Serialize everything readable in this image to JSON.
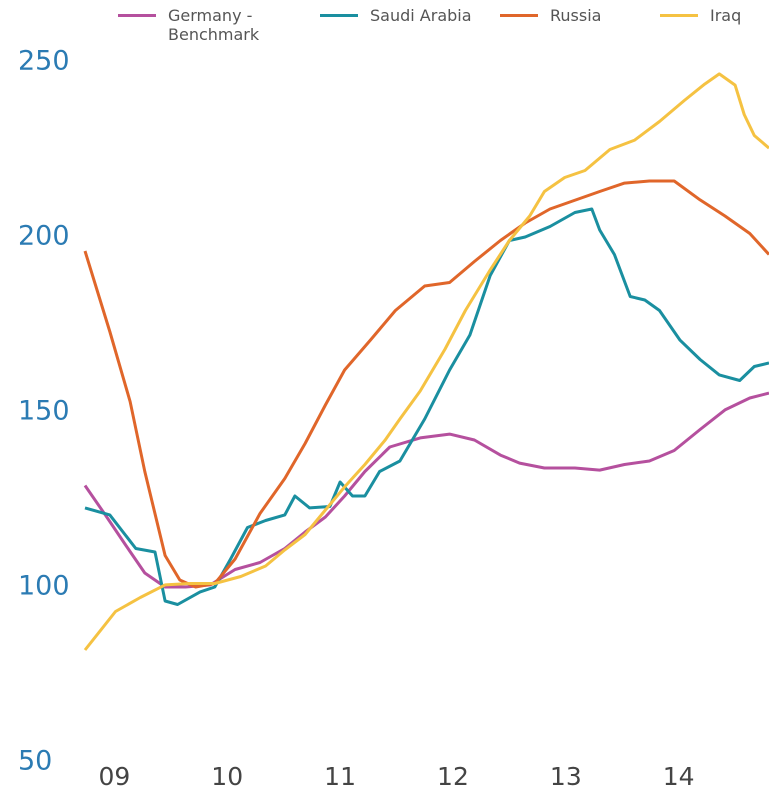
{
  "chart_data": {
    "type": "line",
    "xlim": [
      2008.74,
      2014.8
    ],
    "xticks": [
      {
        "value": 2009,
        "label": "09"
      },
      {
        "value": 2010,
        "label": "10"
      },
      {
        "value": 2011,
        "label": "11"
      },
      {
        "value": 2012,
        "label": "12"
      },
      {
        "value": 2013,
        "label": "13"
      },
      {
        "value": 2014,
        "label": "14"
      }
    ],
    "ylim": [
      50,
      250
    ],
    "yticks": [
      50,
      100,
      150,
      200,
      250
    ],
    "series": [
      {
        "name": "Germany - Benchmark",
        "color": "#b5509e",
        "x": [
          2008.74,
          2008.92,
          2009.1,
          2009.27,
          2009.45,
          2009.63,
          2009.85,
          2010.07,
          2010.29,
          2010.51,
          2010.69,
          2010.87,
          2011.04,
          2011.22,
          2011.44,
          2011.71,
          2011.97,
          2012.19,
          2012.42,
          2012.59,
          2012.81,
          2013.08,
          2013.3,
          2013.52,
          2013.74,
          2013.96,
          2014.19,
          2014.41,
          2014.63,
          2014.8
        ],
        "values": [
          129,
          120.6,
          112,
          104,
          100,
          100,
          100.6,
          105,
          107,
          111,
          115.7,
          120,
          126,
          133,
          140,
          142.6,
          143.7,
          142,
          137.7,
          135.4,
          134,
          134,
          133.4,
          135,
          136,
          139,
          145,
          150.6,
          154,
          155.4
        ]
      },
      {
        "name": "Saudi Arabia",
        "color": "#1a8fa0",
        "x": [
          2008.74,
          2008.96,
          2009.19,
          2009.36,
          2009.45,
          2009.56,
          2009.76,
          2009.89,
          2010.03,
          2010.18,
          2010.34,
          2010.51,
          2010.6,
          2010.73,
          2010.91,
          2011.0,
          2011.11,
          2011.22,
          2011.35,
          2011.53,
          2011.75,
          2011.97,
          2012.15,
          2012.33,
          2012.5,
          2012.64,
          2012.86,
          2013.08,
          2013.23,
          2013.3,
          2013.43,
          2013.57,
          2013.7,
          2013.83,
          2014.01,
          2014.19,
          2014.36,
          2014.54,
          2014.67,
          2014.8
        ],
        "values": [
          122.6,
          120.6,
          111,
          110,
          96,
          95,
          98.6,
          100,
          108,
          117,
          119,
          120.6,
          126,
          122.6,
          123,
          130,
          126,
          126,
          133,
          136,
          148,
          162,
          172,
          189,
          199,
          200,
          203,
          207,
          208,
          202,
          195,
          183,
          182,
          179,
          170.6,
          165,
          160.6,
          159,
          163,
          164
        ]
      },
      {
        "name": "Russia",
        "color": "#e0662a",
        "x": [
          2008.74,
          2008.96,
          2009.14,
          2009.27,
          2009.45,
          2009.58,
          2009.72,
          2009.89,
          2010.07,
          2010.29,
          2010.51,
          2010.69,
          2010.87,
          2011.04,
          2011.27,
          2011.49,
          2011.75,
          2011.97,
          2012.19,
          2012.42,
          2012.64,
          2012.86,
          2013.3,
          2013.52,
          2013.74,
          2013.96,
          2014.19,
          2014.41,
          2014.63,
          2014.8
        ],
        "values": [
          196,
          173,
          153,
          133,
          109,
          102,
          100,
          101,
          108,
          121,
          131,
          141,
          152,
          162,
          170.6,
          179,
          186,
          187,
          193,
          199,
          204,
          208,
          213,
          215.4,
          216,
          216,
          210.6,
          206,
          201,
          195
        ]
      },
      {
        "name": "Iraq",
        "color": "#f5c242",
        "x": [
          2008.74,
          2009.01,
          2009.23,
          2009.45,
          2009.67,
          2009.89,
          2010.12,
          2010.34,
          2010.51,
          2010.69,
          2010.87,
          2011.04,
          2011.22,
          2011.4,
          2011.53,
          2011.71,
          2011.93,
          2012.11,
          2012.33,
          2012.5,
          2012.68,
          2012.81,
          2012.99,
          2013.17,
          2013.39,
          2013.61,
          2013.83,
          2014.05,
          2014.23,
          2014.36,
          2014.5,
          2014.58,
          2014.67,
          2014.8
        ],
        "values": [
          82,
          93,
          97,
          100.6,
          101,
          101,
          103,
          106,
          110.6,
          115,
          122,
          128.6,
          135,
          142,
          148,
          156,
          168,
          179,
          190.6,
          199,
          206,
          213,
          217,
          219,
          225,
          227.7,
          233,
          239,
          243.7,
          246.6,
          243.4,
          235,
          229,
          225.4
        ]
      }
    ]
  }
}
